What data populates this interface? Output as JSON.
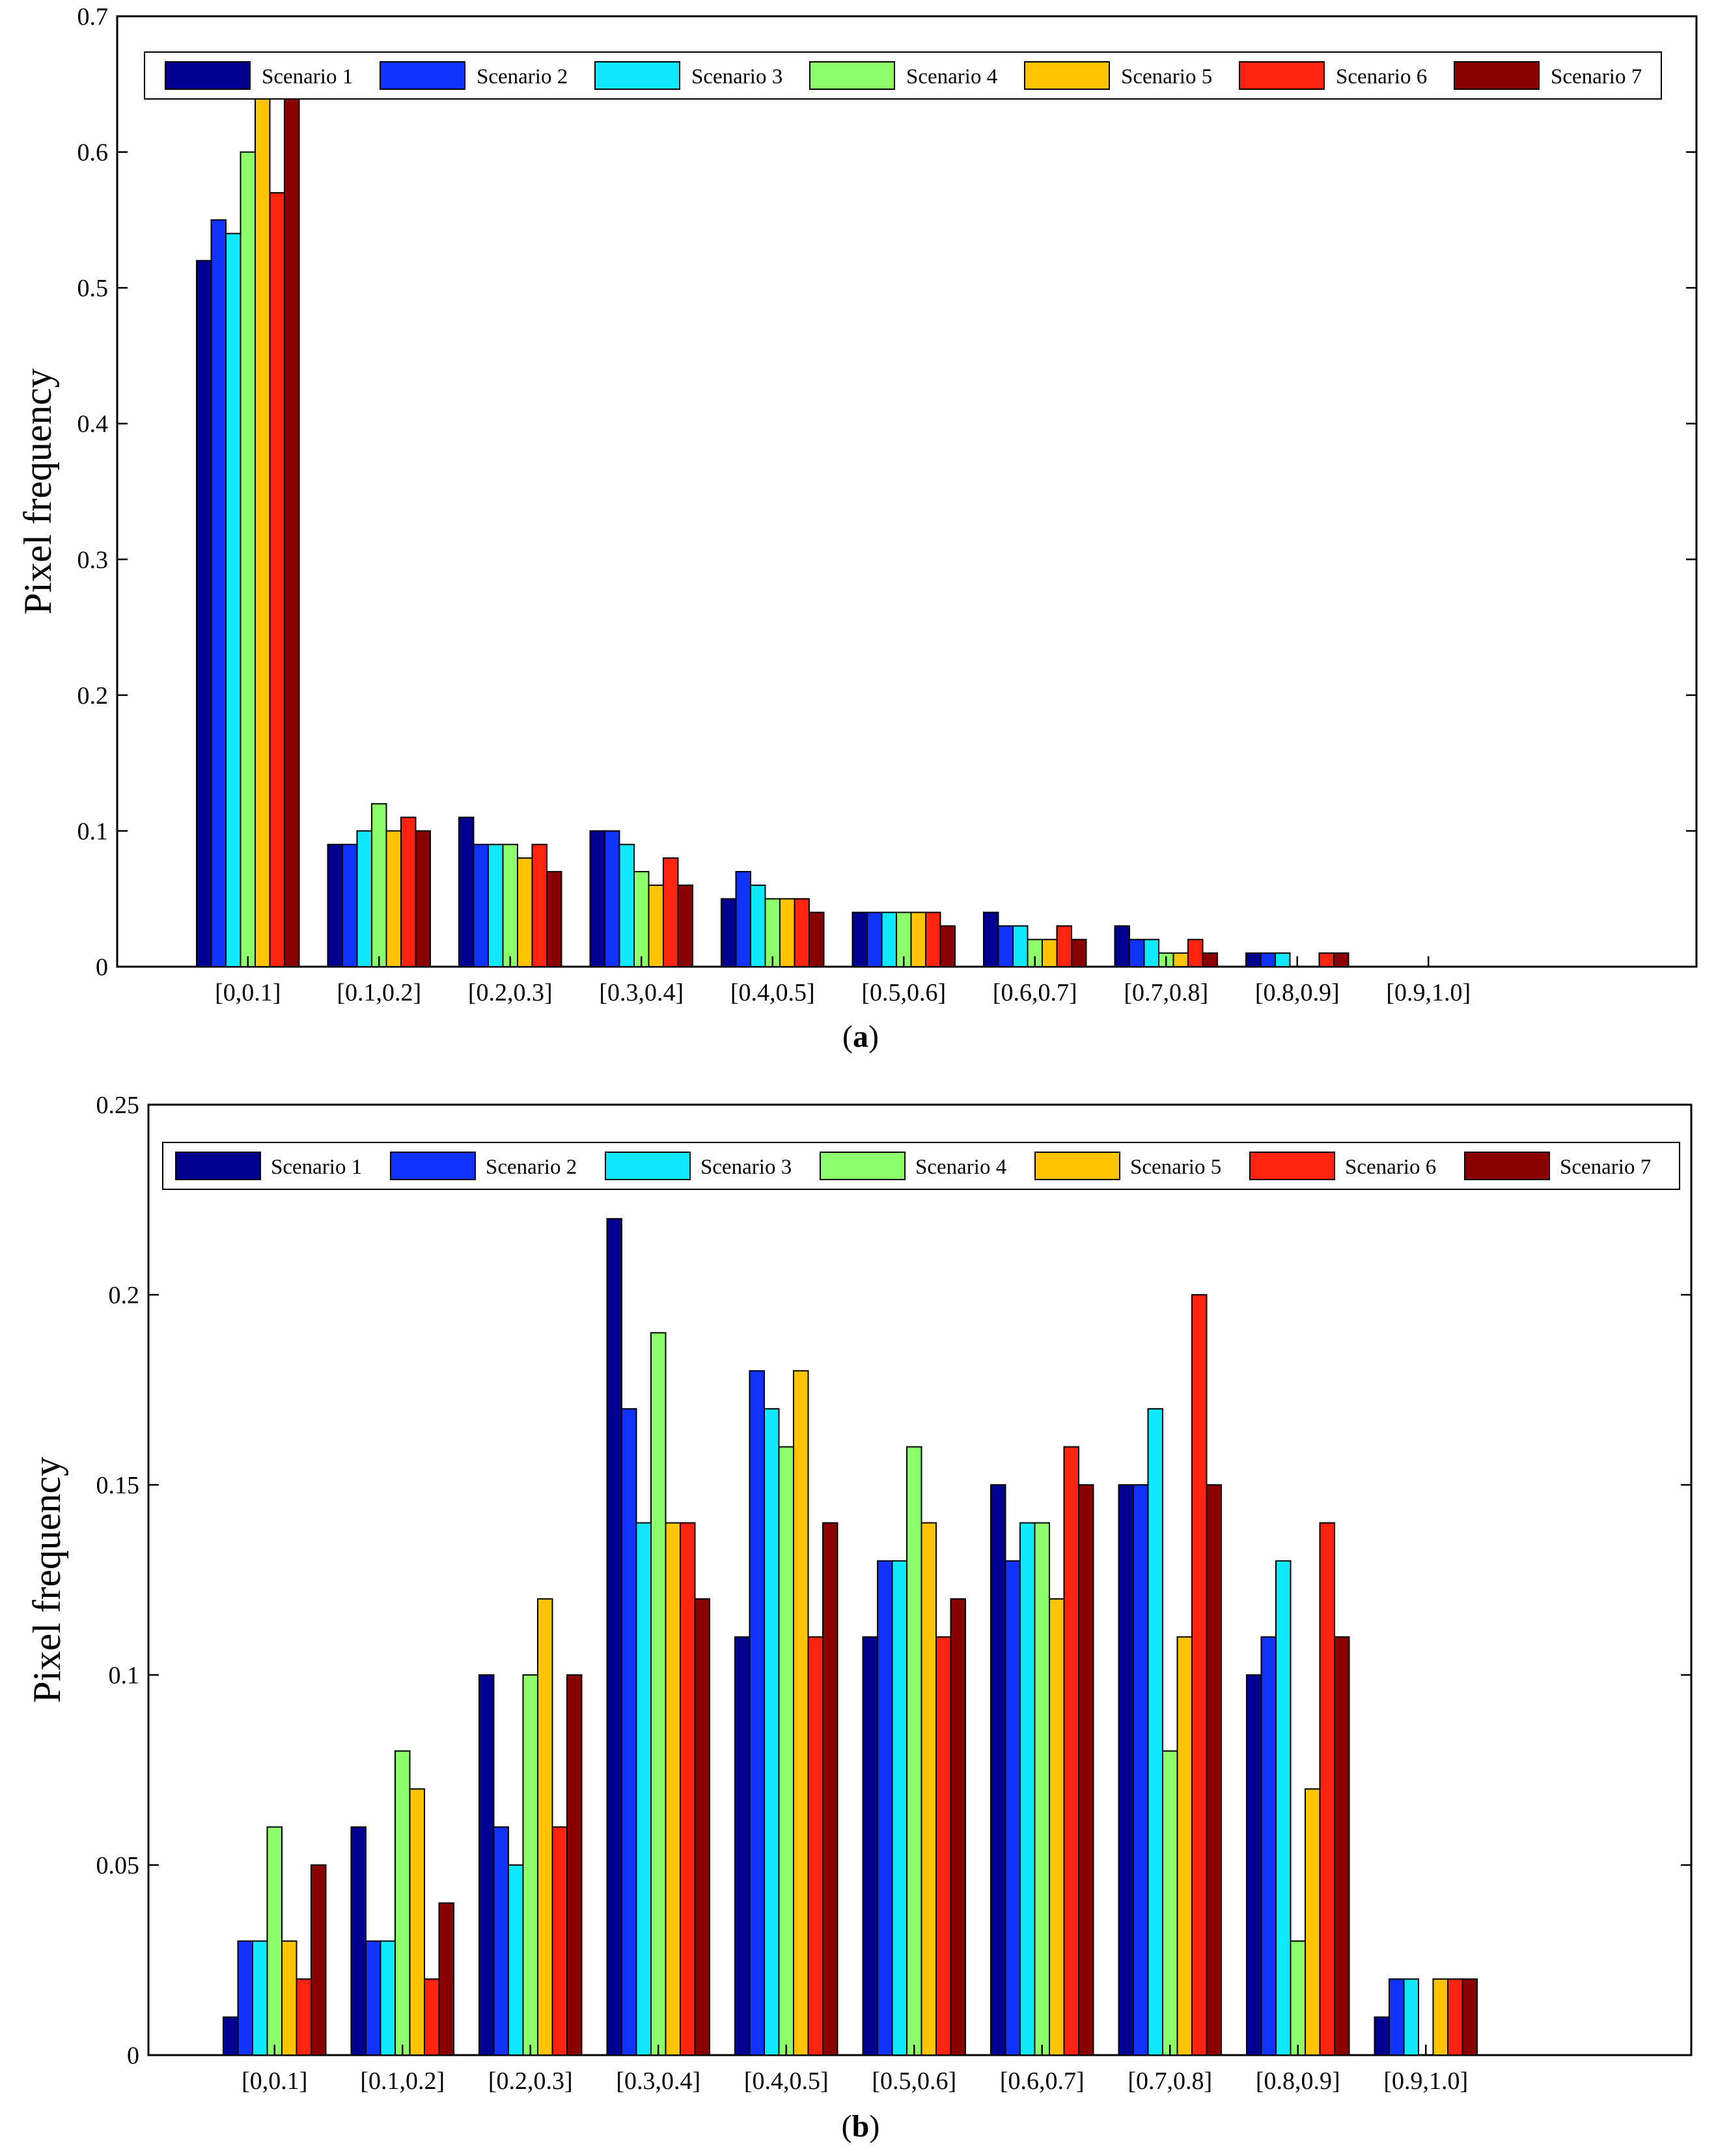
{
  "chart_data": [
    {
      "type": "bar",
      "panel": "a",
      "caption_open": "(",
      "caption_letter": "a",
      "caption_close": ")",
      "title": "",
      "xlabel": "",
      "ylabel": "Pixel frequency",
      "ylim": [
        0,
        0.7
      ],
      "yticks": [
        0,
        0.1,
        0.2,
        0.3,
        0.4,
        0.5,
        0.6,
        0.7
      ],
      "ytick_labels": [
        "0",
        "0.1",
        "0.2",
        "0.3",
        "0.4",
        "0.5",
        "0.6",
        "0.7"
      ],
      "grid": false,
      "legend_position": "top",
      "categories": [
        "[0,0.1]",
        "[0.1,0.2]",
        "[0.2,0.3]",
        "[0.3,0.4]",
        "[0.4,0.5]",
        "[0.5,0.6]",
        "[0.6,0.7]",
        "[0.7,0.8]",
        "[0.8,0.9]",
        "[0.9,1.0]"
      ],
      "series": [
        {
          "name": "Scenario 1",
          "color": "#00008f",
          "values": [
            0.52,
            0.09,
            0.11,
            0.1,
            0.05,
            0.04,
            0.04,
            0.03,
            0.01,
            0
          ]
        },
        {
          "name": "Scenario 2",
          "color": "#0f32ff",
          "values": [
            0.55,
            0.09,
            0.09,
            0.1,
            0.07,
            0.04,
            0.03,
            0.02,
            0.01,
            0
          ]
        },
        {
          "name": "Scenario 3",
          "color": "#10e8ff",
          "values": [
            0.54,
            0.1,
            0.09,
            0.09,
            0.06,
            0.04,
            0.03,
            0.02,
            0.01,
            0
          ]
        },
        {
          "name": "Scenario 4",
          "color": "#8cff6b",
          "values": [
            0.6,
            0.12,
            0.09,
            0.07,
            0.05,
            0.04,
            0.02,
            0.01,
            0,
            0
          ]
        },
        {
          "name": "Scenario 5",
          "color": "#ffc400",
          "values": [
            0.64,
            0.1,
            0.08,
            0.06,
            0.05,
            0.04,
            0.02,
            0.01,
            0,
            0
          ]
        },
        {
          "name": "Scenario 6",
          "color": "#ff2410",
          "values": [
            0.57,
            0.11,
            0.09,
            0.08,
            0.05,
            0.04,
            0.03,
            0.02,
            0.01,
            0
          ]
        },
        {
          "name": "Scenario 7",
          "color": "#8a0000",
          "values": [
            0.66,
            0.1,
            0.07,
            0.06,
            0.04,
            0.03,
            0.02,
            0.01,
            0.01,
            0
          ]
        }
      ]
    },
    {
      "type": "bar",
      "panel": "b",
      "caption_open": "(",
      "caption_letter": "b",
      "caption_close": ")",
      "title": "",
      "xlabel": "",
      "ylabel": "Pixel frequency",
      "ylim": [
        0,
        0.25
      ],
      "yticks": [
        0,
        0.05,
        0.1,
        0.15,
        0.2,
        0.25
      ],
      "ytick_labels": [
        "0",
        "0.05",
        "0.1",
        "0.15",
        "0.2",
        "0.25"
      ],
      "grid": false,
      "legend_position": "top",
      "categories": [
        "[0,0.1]",
        "[0.1,0.2]",
        "[0.2,0.3]",
        "[0.3,0.4]",
        "[0.4,0.5]",
        "[0.5,0.6]",
        "[0.6,0.7]",
        "[0.7,0.8]",
        "[0.8,0.9]",
        "[0.9,1.0]"
      ],
      "series": [
        {
          "name": "Scenario 1",
          "color": "#00008f",
          "values": [
            0.01,
            0.06,
            0.1,
            0.22,
            0.11,
            0.11,
            0.15,
            0.15,
            0.1,
            0.01
          ]
        },
        {
          "name": "Scenario 2",
          "color": "#0f32ff",
          "values": [
            0.03,
            0.03,
            0.06,
            0.17,
            0.18,
            0.13,
            0.13,
            0.15,
            0.11,
            0.02
          ]
        },
        {
          "name": "Scenario 3",
          "color": "#10e8ff",
          "values": [
            0.03,
            0.03,
            0.05,
            0.14,
            0.17,
            0.13,
            0.14,
            0.17,
            0.13,
            0.02
          ]
        },
        {
          "name": "Scenario 4",
          "color": "#8cff6b",
          "values": [
            0.06,
            0.08,
            0.1,
            0.19,
            0.16,
            0.16,
            0.14,
            0.08,
            0.03,
            0
          ]
        },
        {
          "name": "Scenario 5",
          "color": "#ffc400",
          "values": [
            0.03,
            0.07,
            0.12,
            0.14,
            0.18,
            0.14,
            0.12,
            0.11,
            0.07,
            0.02
          ]
        },
        {
          "name": "Scenario 6",
          "color": "#ff2410",
          "values": [
            0.02,
            0.02,
            0.06,
            0.14,
            0.11,
            0.11,
            0.16,
            0.2,
            0.14,
            0.02
          ]
        },
        {
          "name": "Scenario 7",
          "color": "#8a0000",
          "values": [
            0.05,
            0.04,
            0.1,
            0.12,
            0.14,
            0.12,
            0.15,
            0.15,
            0.11,
            0.02
          ]
        }
      ]
    }
  ]
}
